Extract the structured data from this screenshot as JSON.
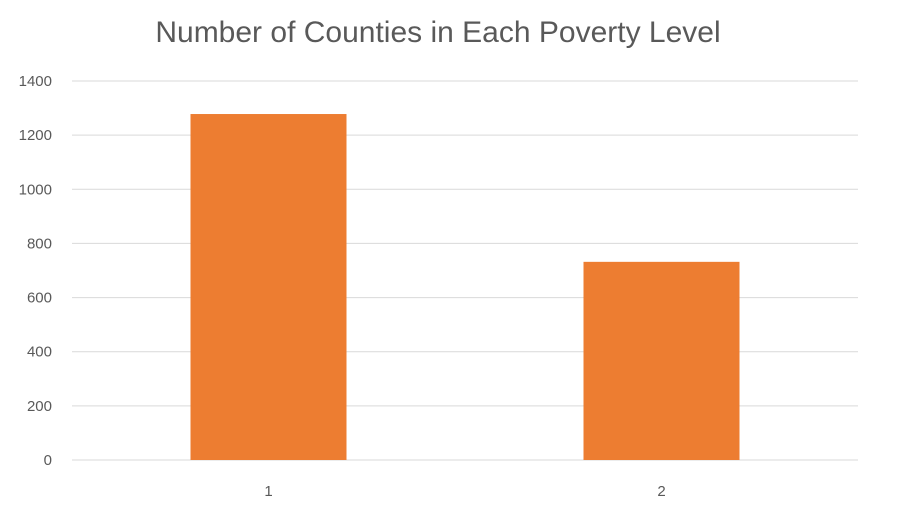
{
  "chart_data": {
    "type": "bar",
    "title": "Number of Counties in Each Poverty Level",
    "categories": [
      "1",
      "2"
    ],
    "values": [
      1278,
      732
    ],
    "ylim": [
      0,
      1400
    ],
    "yticks": [
      0,
      200,
      400,
      600,
      800,
      1000,
      1200,
      1400
    ],
    "xlabel": "",
    "ylabel": "",
    "grid": true,
    "legend": "none",
    "bar_color": "#ED7D31",
    "grid_color": "#D9D9D9",
    "text_color": "#595959"
  }
}
